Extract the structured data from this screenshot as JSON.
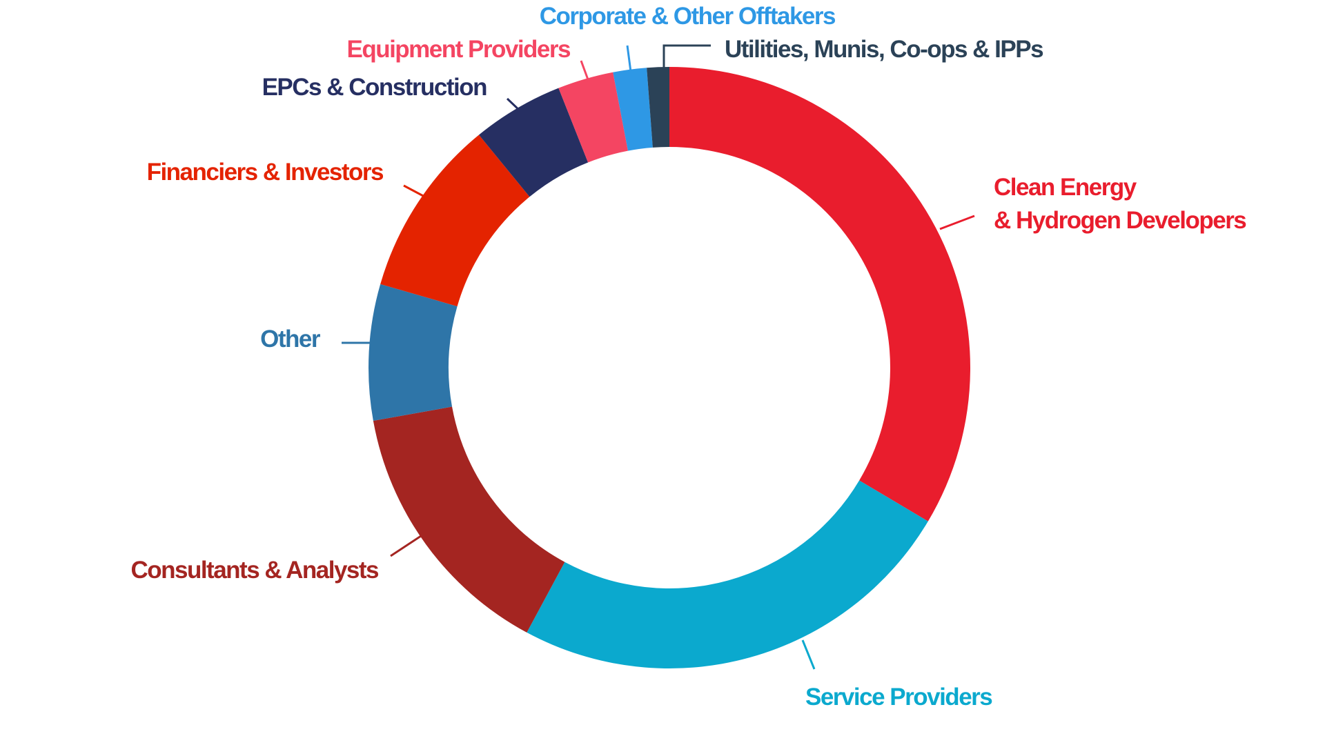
{
  "chart_data": {
    "type": "pie",
    "variant": "donut",
    "legend": "none",
    "slices": [
      {
        "label": "Clean Energy & Hydrogen Developers",
        "lines": [
          "Clean Energy",
          "& Hydrogen Developers"
        ],
        "value": 33.5,
        "color": "#E91D2D"
      },
      {
        "label": "Service Providers",
        "lines": [
          "Service Providers"
        ],
        "value": 24.3,
        "color": "#0BA9CE"
      },
      {
        "label": "Consultants & Analysts",
        "lines": [
          "Consultants & Analysts"
        ],
        "value": 14.3,
        "color": "#A42521"
      },
      {
        "label": "Other",
        "lines": [
          "Other"
        ],
        "value": 7.3,
        "color": "#2E75A8"
      },
      {
        "label": "Financiers & Investors",
        "lines": [
          "Financiers & Investors"
        ],
        "value": 9.6,
        "color": "#E42300"
      },
      {
        "label": "EPCs & Construction",
        "lines": [
          "EPCs & Construction"
        ],
        "value": 4.9,
        "color": "#262F62"
      },
      {
        "label": "Equipment Providers",
        "lines": [
          "Equipment Providers"
        ],
        "value": 3.0,
        "color": "#F44562"
      },
      {
        "label": "Corporate & Other Offtakers",
        "lines": [
          "Corporate & Other Offtakers"
        ],
        "value": 1.8,
        "color": "#2E98E5"
      },
      {
        "label": "Utilities, Munis, Co-ops & IPPs",
        "lines": [
          "Utilities, Munis, Co-ops & IPPs"
        ],
        "value": 1.2,
        "color": "#2B4257"
      }
    ]
  }
}
